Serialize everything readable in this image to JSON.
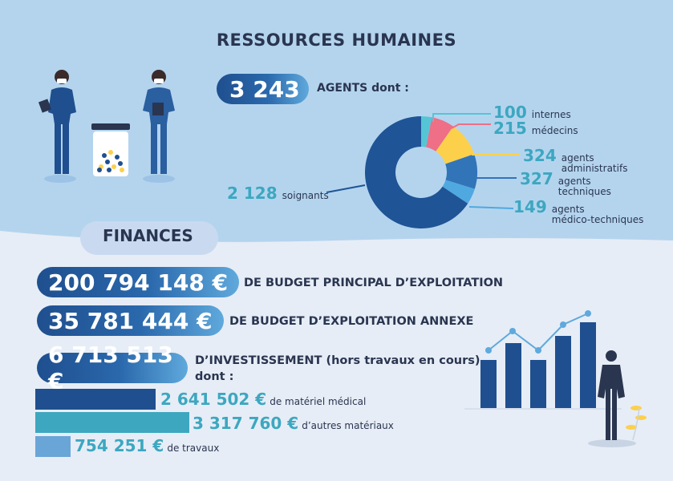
{
  "header": {
    "title": "RESSOURCES HUMAINES"
  },
  "agents": {
    "total": "3 243",
    "label": "AGENTS dont :"
  },
  "chart_data": {
    "type": "pie",
    "categories": [
      "internes",
      "médecins",
      "agents administratifs",
      "agents techniques",
      "agents médico-techniques",
      "soignants"
    ],
    "values": [
      100,
      215,
      324,
      327,
      149,
      2128
    ],
    "colors": [
      "#55c5d6",
      "#ee6f86",
      "#fdd04b",
      "#3274b8",
      "#4fa9e0",
      "#1f5496"
    ]
  },
  "legend": {
    "internes": {
      "value": "100",
      "text": "internes"
    },
    "medecins": {
      "value": "215",
      "text": "médecins"
    },
    "admin": {
      "value": "324",
      "text1": "agents",
      "text2": "administratifs"
    },
    "tech": {
      "value": "327",
      "text1": "agents",
      "text2": "techniques"
    },
    "medtech": {
      "value": "149",
      "text1": "agents",
      "text2": "médico-techniques"
    },
    "soignants": {
      "value": "2 128",
      "text": "soignants"
    }
  },
  "finances": {
    "title": "FINANCES",
    "principal": {
      "amount": "200 794 148 €",
      "label": "DE BUDGET PRINCIPAL D’EXPLOITATION"
    },
    "annexe": {
      "amount": "35 781 444 €",
      "label": "DE BUDGET D’EXPLOITATION ANNEXE"
    },
    "invest": {
      "amount": "6 713 513 €",
      "label1": "D’INVESTISSEMENT (hors travaux en cours)",
      "label2": "dont :"
    },
    "breakdown": [
      {
        "amount": "2 641 502 €",
        "label": "de matériel médical",
        "value": 2641502,
        "color": "#1f4f8f"
      },
      {
        "amount": "3 317 760 €",
        "label": "d’autres matériaux",
        "value": 3317760,
        "color": "#3da7c0"
      },
      {
        "amount": "754 251 €",
        "label": "de travaux",
        "value": 754251,
        "color": "#6aa5d8"
      }
    ]
  }
}
